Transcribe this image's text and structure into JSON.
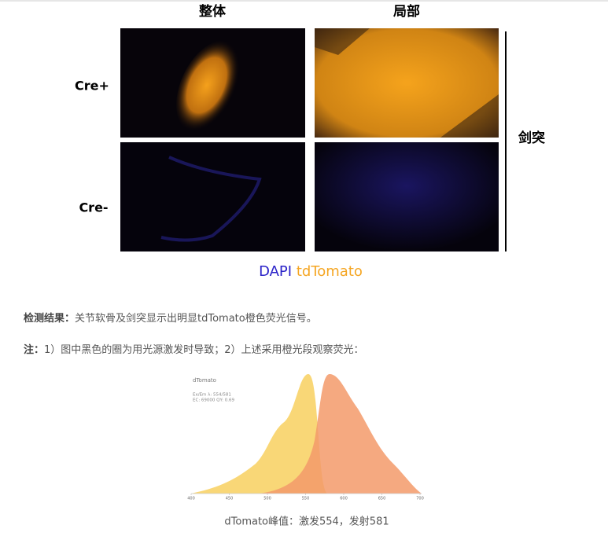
{
  "figure": {
    "col_headers": [
      "整体",
      "局部"
    ],
    "row_labels": [
      "Cre+",
      "Cre-"
    ],
    "side_label": "剑突",
    "legend": {
      "dapi": "DAPI",
      "tdtomato": "tdTomato"
    }
  },
  "result": {
    "label": "检测结果：",
    "text": "关节软骨及剑突显示出明显tdTomato橙色荧光信号。"
  },
  "note": {
    "label": "注：",
    "text": "1）图中黑色的圈为用光源激发时导致；2）上述采用橙光段观察荧光："
  },
  "spectrum": {
    "title": "dTomato",
    "line1": "Ex/Em λ: 554/581",
    "line2": "EC: 69000   QY: 0.69",
    "xlim": [
      400,
      700
    ],
    "xticks": [
      400,
      450,
      500,
      550,
      600,
      650,
      700
    ]
  },
  "caption": "dTomato峰值：激发554，发射581"
}
